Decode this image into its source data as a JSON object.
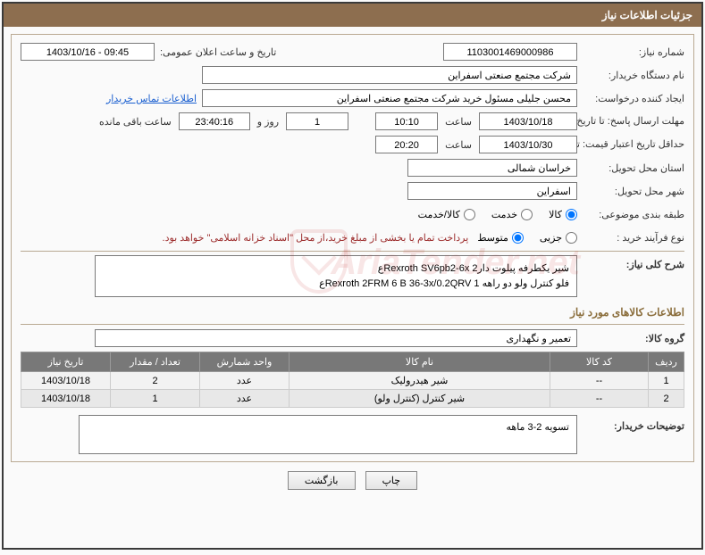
{
  "title_bar": "جزئیات اطلاعات نیاز",
  "fields": {
    "need_no_label": "شماره نیاز:",
    "need_no": "1103001469000986",
    "announce_label": "تاریخ و ساعت اعلان عمومی:",
    "announce_value": "1403/10/16 - 09:45",
    "buyer_org_label": "نام دستگاه خریدار:",
    "buyer_org": "شرکت مجتمع صنعتی اسفراین",
    "requester_label": "ایجاد کننده درخواست:",
    "requester": "محسن جلیلی مسئول خرید شرکت مجتمع صنعتی اسفراین",
    "contact_link": "اطلاعات تماس خریدار",
    "reply_deadline_label": "مهلت ارسال پاسخ: تا تاریخ:",
    "reply_date": "1403/10/18",
    "time_label": "ساعت",
    "reply_time": "10:10",
    "days_count": "1",
    "days_and": "روز و",
    "countdown": "23:40:16",
    "remaining": "ساعت باقی مانده",
    "price_valid_label": "حداقل تاریخ اعتبار قیمت: تا تاریخ:",
    "price_valid_date": "1403/10/30",
    "price_valid_time": "20:20",
    "province_label": "استان محل تحویل:",
    "province": "خراسان شمالی",
    "city_label": "شهر محل تحویل:",
    "city": "اسفراین",
    "category_label": "طبقه بندی موضوعی:",
    "purchase_type_label": "نوع فرآیند خرید :",
    "payment_note": "پرداخت تمام یا بخشی از مبلغ خرید،از محل \"اسناد خزانه اسلامی\" خواهد بود."
  },
  "radios": {
    "category": [
      {
        "label": "کالا",
        "checked": true
      },
      {
        "label": "خدمت",
        "checked": false
      },
      {
        "label": "کالا/خدمت",
        "checked": false
      }
    ],
    "purchase": [
      {
        "label": "جزیی",
        "checked": false
      },
      {
        "label": "متوسط",
        "checked": true
      }
    ]
  },
  "general_desc_label": "شرح کلی نیاز:",
  "general_desc_line1": "شیر یکطرفه  پیلوت دارRexroth SV6pb2-6x      2ع",
  "general_desc_line2": "فلو کنترل ولو دو راهه   Rexroth 2FRM 6 B 36-3x/0.2QRV      1ع",
  "items_section_title": "اطلاعات کالاهای مورد نیاز",
  "group_label": "گروه کالا:",
  "group_value": "تعمیر و نگهداری",
  "table": {
    "headers": [
      "ردیف",
      "کد کالا",
      "نام کالا",
      "واحد شمارش",
      "تعداد / مقدار",
      "تاریخ نیاز"
    ],
    "rows": [
      [
        "1",
        "--",
        "شیر هیدرولیک",
        "عدد",
        "2",
        "1403/10/18"
      ],
      [
        "2",
        "--",
        "شیر کنترل (کنترل ولو)",
        "عدد",
        "1",
        "1403/10/18"
      ]
    ]
  },
  "buyer_notes_label": "توضیحات خریدار:",
  "buyer_notes": "تسویه 2-3 ماهه",
  "buttons": {
    "print": "چاپ",
    "back": "بازگشت"
  },
  "colors": {
    "header_bg": "#8d6e4f",
    "border": "#b9a992",
    "th_bg": "#787878",
    "link": "#1a5fd0",
    "note": "#9c2b2b"
  }
}
